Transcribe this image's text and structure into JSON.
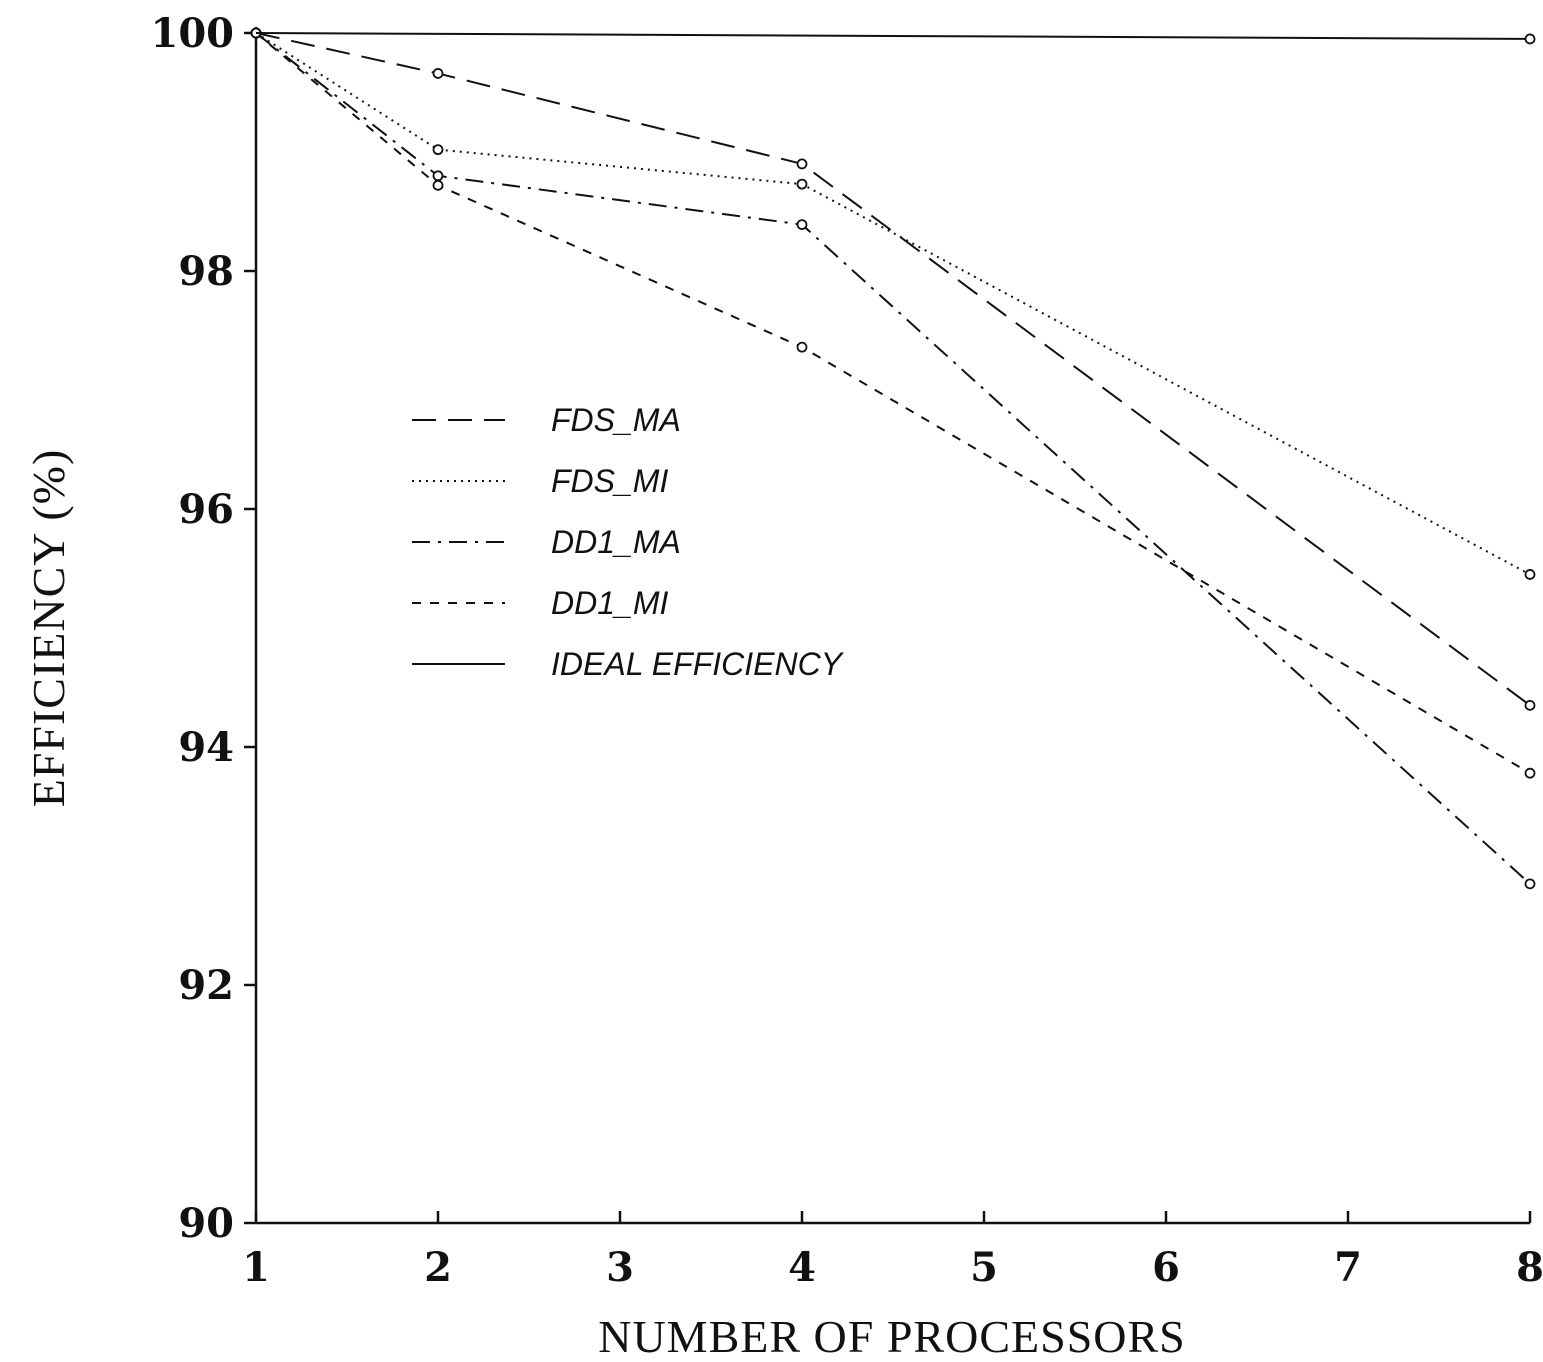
{
  "chart_data": {
    "type": "line",
    "xlabel": "NUMBER OF PROCESSORS",
    "ylabel": "EFFICIENCY (%)",
    "xlim": [
      1,
      8
    ],
    "ylim": [
      90,
      100
    ],
    "x_ticks": [
      "1",
      "2",
      "3",
      "4",
      "5",
      "6",
      "7",
      "8"
    ],
    "y_ticks": [
      "90",
      "92",
      "94",
      "96",
      "98",
      "100"
    ],
    "grid": false,
    "legend_position": "center-left",
    "series": [
      {
        "name": "FDS_MA",
        "dash": "dashed",
        "x": [
          1,
          2,
          4,
          8
        ],
        "y": [
          100,
          99.66,
          98.9,
          94.35
        ]
      },
      {
        "name": "FDS_MI",
        "dash": "dotted",
        "x": [
          1,
          2,
          4,
          8
        ],
        "y": [
          100,
          99.02,
          98.73,
          95.45
        ]
      },
      {
        "name": "DD1_MA",
        "dash": "dashdot",
        "x": [
          1,
          2,
          4,
          8
        ],
        "y": [
          100,
          98.8,
          98.39,
          92.85
        ]
      },
      {
        "name": "DD1_MI",
        "dash": "shortdash",
        "x": [
          1,
          2,
          4,
          8
        ],
        "y": [
          100,
          98.72,
          97.36,
          93.78
        ]
      },
      {
        "name": "IDEAL EFFICIENCY",
        "dash": "solid",
        "x": [
          1,
          8
        ],
        "y": [
          100,
          99.95
        ]
      }
    ]
  }
}
